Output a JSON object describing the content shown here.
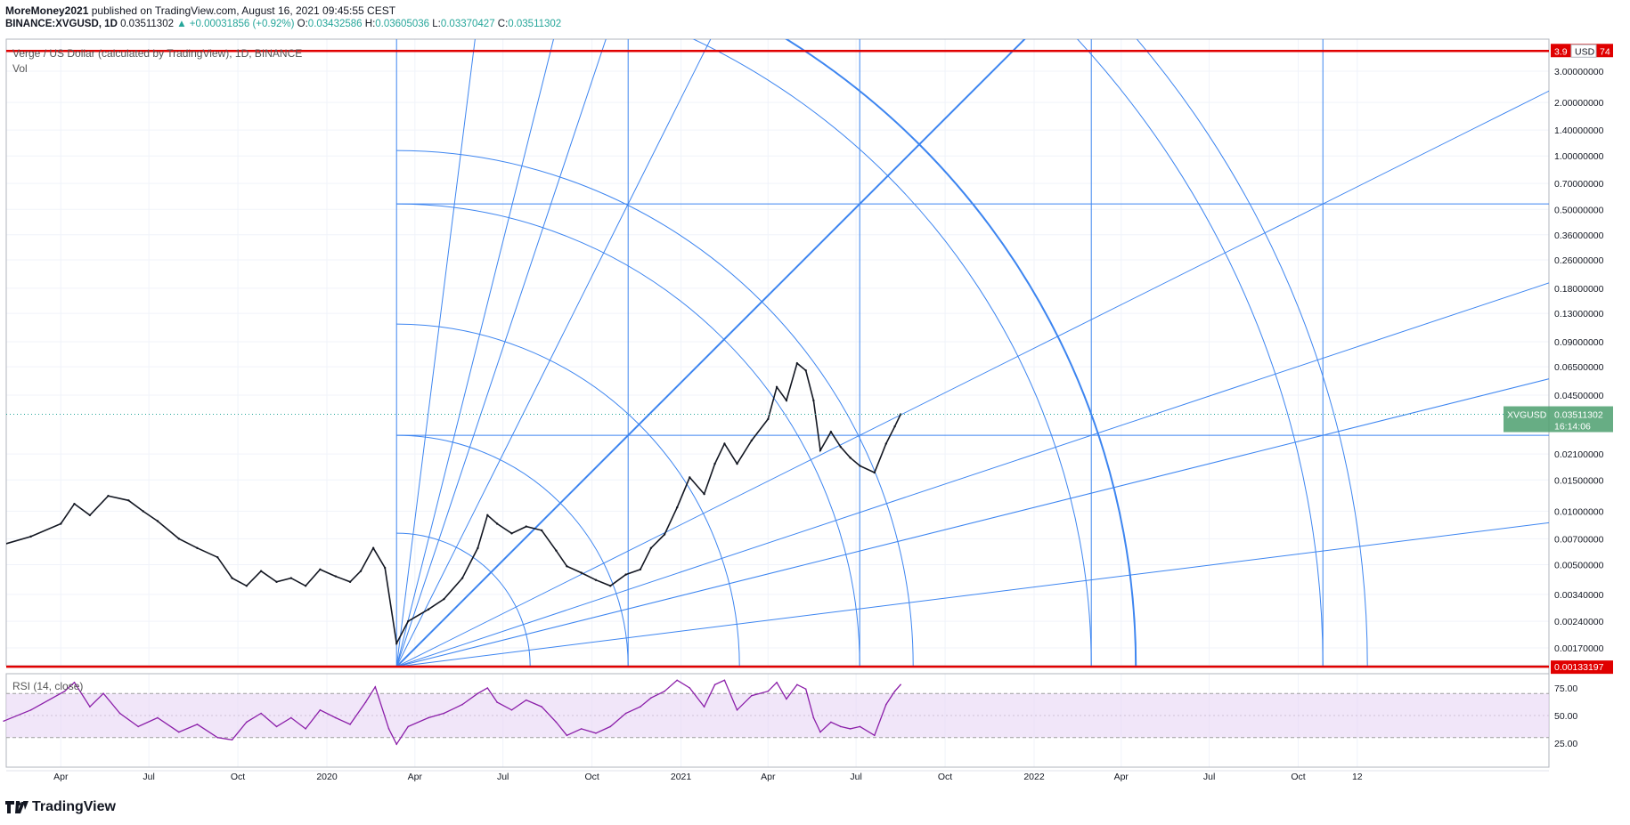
{
  "header": {
    "author": "MoreMoney2021",
    "published_text": "published on TradingView.com, August 16, 2021 09:45:55 CEST",
    "symbol": "BINANCE:XVGUSD, 1D",
    "last": "0.03511302",
    "change_arrow": "▲",
    "change": "+0.00031856 (+0.92%)",
    "o_label": "O:",
    "o": "0.03432586",
    "h_label": "H:",
    "h": "0.03605036",
    "l_label": "L:",
    "l": "0.03370427",
    "c_label": "C:",
    "c": "0.03511302"
  },
  "chart_data": {
    "type": "line",
    "title": "Verge / US Dollar (calculated by TradingView), 1D, BINANCE",
    "volume_label": "Vol",
    "currency_label": "USD",
    "price_scale": "log",
    "y_ticks": [
      3.0,
      2.0,
      1.4,
      1.0,
      0.7,
      0.5,
      0.36,
      0.26,
      0.18,
      0.13,
      0.09,
      0.065,
      0.045,
      0.021,
      0.015,
      0.01,
      0.007,
      0.005,
      0.0034,
      0.0024,
      0.0017
    ],
    "y_tick_labels": [
      "3.00000000",
      "2.00000000",
      "1.40000000",
      "1.00000000",
      "0.70000000",
      "0.50000000",
      "0.36000000",
      "0.26000000",
      "0.18000000",
      "0.13000000",
      "0.09000000",
      "0.06500000",
      "0.04500000",
      "0.02100000",
      "0.01500000",
      "0.01000000",
      "0.00700000",
      "0.00500000",
      "0.00340000",
      "0.00240000",
      "0.00170000"
    ],
    "x_labels": [
      "Apr",
      "Jul",
      "Oct",
      "2020",
      "Apr",
      "Jul",
      "Oct",
      "2021",
      "Apr",
      "Jul",
      "Oct",
      "2022",
      "Apr",
      "Jul",
      "Oct",
      "12"
    ],
    "last_price_tag": {
      "symbol": "XVGUSD",
      "value": "0.03511302",
      "countdown": "16:14:06",
      "price": 0.03511302
    },
    "high_line": {
      "label": "3.9",
      "label_suffix": "74",
      "price": 3.9
    },
    "low_line": {
      "label": "0.00133197",
      "price": 0.00133197
    },
    "series": [
      {
        "name": "XVGUSD",
        "color": "#131722",
        "points": [
          [
            "2019-02-01",
            0.0065
          ],
          [
            "2019-03-01",
            0.0072
          ],
          [
            "2019-04-01",
            0.0085
          ],
          [
            "2019-04-15",
            0.011
          ],
          [
            "2019-05-01",
            0.0095
          ],
          [
            "2019-05-20",
            0.0122
          ],
          [
            "2019-06-10",
            0.0115
          ],
          [
            "2019-06-25",
            0.01
          ],
          [
            "2019-07-10",
            0.0088
          ],
          [
            "2019-08-01",
            0.007
          ],
          [
            "2019-08-20",
            0.0062
          ],
          [
            "2019-09-10",
            0.0055
          ],
          [
            "2019-09-25",
            0.0042
          ],
          [
            "2019-10-10",
            0.0038
          ],
          [
            "2019-10-25",
            0.0046
          ],
          [
            "2019-11-10",
            0.004
          ],
          [
            "2019-11-25",
            0.0042
          ],
          [
            "2019-12-10",
            0.0038
          ],
          [
            "2019-12-25",
            0.0047
          ],
          [
            "2020-01-10",
            0.0043
          ],
          [
            "2020-01-25",
            0.004
          ],
          [
            "2020-02-05",
            0.0046
          ],
          [
            "2020-02-18",
            0.0062
          ],
          [
            "2020-03-01",
            0.0048
          ],
          [
            "2020-03-13",
            0.0018
          ],
          [
            "2020-03-25",
            0.0024
          ],
          [
            "2020-04-15",
            0.0028
          ],
          [
            "2020-05-01",
            0.0032
          ],
          [
            "2020-05-20",
            0.0042
          ],
          [
            "2020-06-05",
            0.0062
          ],
          [
            "2020-06-15",
            0.0095
          ],
          [
            "2020-06-25",
            0.0085
          ],
          [
            "2020-07-10",
            0.0075
          ],
          [
            "2020-07-25",
            0.0082
          ],
          [
            "2020-08-10",
            0.0078
          ],
          [
            "2020-08-25",
            0.006
          ],
          [
            "2020-09-05",
            0.0049
          ],
          [
            "2020-09-20",
            0.0045
          ],
          [
            "2020-10-05",
            0.0041
          ],
          [
            "2020-10-20",
            0.0038
          ],
          [
            "2020-11-05",
            0.0044
          ],
          [
            "2020-11-20",
            0.0047
          ],
          [
            "2020-12-01",
            0.0062
          ],
          [
            "2020-12-15",
            0.0074
          ],
          [
            "2020-12-28",
            0.0105
          ],
          [
            "2021-01-10",
            0.0155
          ],
          [
            "2021-01-25",
            0.0125
          ],
          [
            "2021-02-05",
            0.0185
          ],
          [
            "2021-02-15",
            0.024
          ],
          [
            "2021-02-28",
            0.0185
          ],
          [
            "2021-03-15",
            0.025
          ],
          [
            "2021-04-01",
            0.033
          ],
          [
            "2021-04-10",
            0.05
          ],
          [
            "2021-04-20",
            0.042
          ],
          [
            "2021-05-01",
            0.068
          ],
          [
            "2021-05-10",
            0.062
          ],
          [
            "2021-05-18",
            0.042
          ],
          [
            "2021-05-25",
            0.022
          ],
          [
            "2021-06-05",
            0.028
          ],
          [
            "2021-06-15",
            0.023
          ],
          [
            "2021-06-25",
            0.02
          ],
          [
            "2021-07-05",
            0.018
          ],
          [
            "2021-07-20",
            0.0165
          ],
          [
            "2021-08-01",
            0.024
          ],
          [
            "2021-08-10",
            0.03
          ],
          [
            "2021-08-16",
            0.0351
          ]
        ]
      }
    ],
    "rsi": {
      "label": "RSI (14, close)",
      "y_ticks": [
        75,
        50,
        25
      ],
      "y_tick_labels": [
        "75.00",
        "50.00",
        "25.00"
      ],
      "upper_band": 70,
      "lower_band": 30,
      "values": [
        [
          "2019-02-01",
          45
        ],
        [
          "2019-03-01",
          55
        ],
        [
          "2019-04-05",
          72
        ],
        [
          "2019-04-15",
          80
        ],
        [
          "2019-05-01",
          58
        ],
        [
          "2019-05-15",
          70
        ],
        [
          "2019-06-01",
          52
        ],
        [
          "2019-06-20",
          40
        ],
        [
          "2019-07-10",
          48
        ],
        [
          "2019-08-01",
          35
        ],
        [
          "2019-08-20",
          42
        ],
        [
          "2019-09-10",
          30
        ],
        [
          "2019-09-25",
          28
        ],
        [
          "2019-10-10",
          44
        ],
        [
          "2019-10-25",
          52
        ],
        [
          "2019-11-10",
          40
        ],
        [
          "2019-11-25",
          48
        ],
        [
          "2019-12-10",
          38
        ],
        [
          "2019-12-25",
          55
        ],
        [
          "2020-01-10",
          48
        ],
        [
          "2020-01-25",
          42
        ],
        [
          "2020-02-10",
          62
        ],
        [
          "2020-02-20",
          76
        ],
        [
          "2020-03-05",
          38
        ],
        [
          "2020-03-13",
          24
        ],
        [
          "2020-03-25",
          40
        ],
        [
          "2020-04-15",
          48
        ],
        [
          "2020-05-01",
          52
        ],
        [
          "2020-05-20",
          60
        ],
        [
          "2020-06-05",
          70
        ],
        [
          "2020-06-15",
          75
        ],
        [
          "2020-06-25",
          62
        ],
        [
          "2020-07-10",
          55
        ],
        [
          "2020-07-25",
          64
        ],
        [
          "2020-08-10",
          58
        ],
        [
          "2020-08-25",
          44
        ],
        [
          "2020-09-05",
          32
        ],
        [
          "2020-09-20",
          38
        ],
        [
          "2020-10-05",
          34
        ],
        [
          "2020-10-20",
          40
        ],
        [
          "2020-11-05",
          52
        ],
        [
          "2020-11-20",
          58
        ],
        [
          "2020-12-01",
          66
        ],
        [
          "2020-12-15",
          72
        ],
        [
          "2020-12-28",
          82
        ],
        [
          "2021-01-10",
          75
        ],
        [
          "2021-01-25",
          58
        ],
        [
          "2021-02-05",
          78
        ],
        [
          "2021-02-15",
          82
        ],
        [
          "2021-02-28",
          55
        ],
        [
          "2021-03-15",
          68
        ],
        [
          "2021-04-01",
          72
        ],
        [
          "2021-04-10",
          80
        ],
        [
          "2021-04-20",
          65
        ],
        [
          "2021-05-01",
          78
        ],
        [
          "2021-05-10",
          74
        ],
        [
          "2021-05-18",
          48
        ],
        [
          "2021-05-25",
          35
        ],
        [
          "2021-06-05",
          44
        ],
        [
          "2021-06-15",
          40
        ],
        [
          "2021-06-25",
          38
        ],
        [
          "2021-07-05",
          40
        ],
        [
          "2021-07-20",
          32
        ],
        [
          "2021-08-01",
          60
        ],
        [
          "2021-08-10",
          72
        ],
        [
          "2021-08-16",
          78
        ]
      ]
    },
    "gann": {
      "origin": {
        "date": "2020-03-13",
        "price": 0.00133197
      },
      "fan_color": "#3d85f0"
    }
  },
  "footer": {
    "brand": "TradingView"
  }
}
